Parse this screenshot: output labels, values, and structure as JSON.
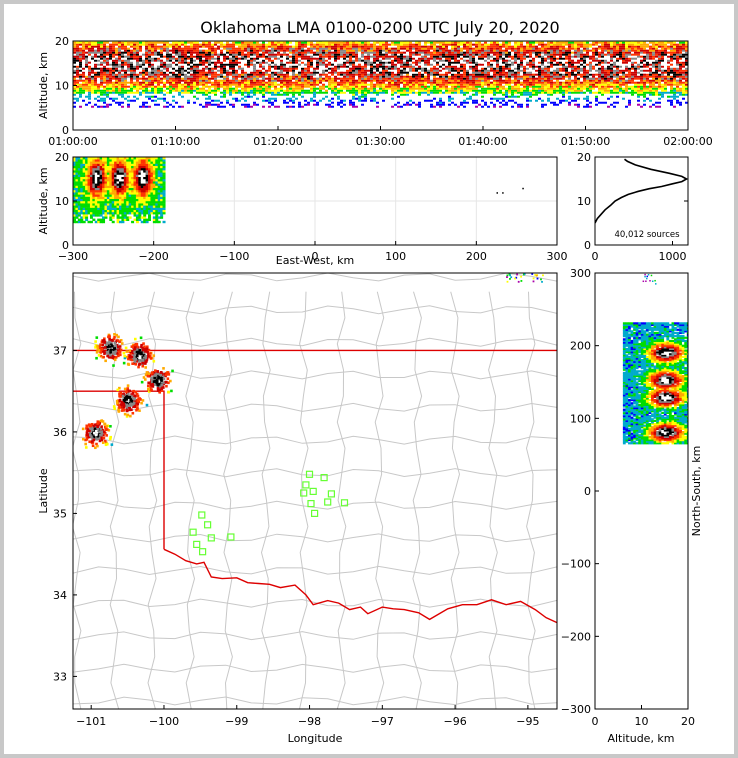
{
  "chart_data": [
    {
      "id": "time-height",
      "type": "heatmap",
      "title": "Oklahoma LMA 0100-0200 UTC July 20, 2020",
      "xlabel": "",
      "ylabel": "Altitude, km",
      "ylim": [
        0,
        20
      ],
      "yticks": [
        "0",
        "10",
        "20"
      ],
      "xticks": [
        "01:00:00",
        "01:10:00",
        "01:20:00",
        "01:30:00",
        "01:40:00",
        "01:50:00",
        "02:00:00"
      ],
      "xlim_minutes": [
        0,
        60
      ],
      "source_band_km": [
        5,
        20
      ],
      "core_band_km": [
        11,
        18
      ]
    },
    {
      "id": "ew-height",
      "type": "heatmap",
      "xlabel": "East-West, km",
      "ylabel": "Altitude, km",
      "xlim": [
        -300,
        300
      ],
      "ylim": [
        0,
        20
      ],
      "xticks": [
        "−300",
        "−200",
        "−100",
        "0",
        "100",
        "200",
        "300"
      ],
      "yticks": [
        "0",
        "10",
        "20"
      ],
      "clusters": [
        {
          "x_range": [
            -300,
            -188
          ],
          "z_range": [
            5,
            20
          ]
        }
      ],
      "core_centers_x": [
        -272,
        -244,
        -215
      ],
      "core_center_z": 15,
      "scattered_points": [
        [
          225,
          12
        ],
        [
          232,
          12
        ],
        [
          257,
          13
        ]
      ]
    },
    {
      "id": "altitude-histogram",
      "type": "line",
      "xlim": [
        0,
        1200
      ],
      "ylim": [
        0,
        20
      ],
      "xticks": [
        "0",
        "1000"
      ],
      "yticks": [
        "0",
        "10",
        "20"
      ],
      "annotation": "40,012 sources",
      "x": [
        0,
        30,
        80,
        130,
        200,
        260,
        340,
        430,
        560,
        700,
        860,
        1000,
        1120,
        1180,
        1120,
        960,
        720,
        520,
        420,
        380
      ],
      "y": [
        5,
        6,
        7,
        8,
        9,
        10,
        10.8,
        11.5,
        12.2,
        12.8,
        13.3,
        13.9,
        14.4,
        15,
        15.6,
        16.3,
        17.2,
        18.2,
        19,
        19.5
      ]
    },
    {
      "id": "plan-view",
      "type": "scatter",
      "xlabel": "Longitude",
      "ylabel": "Latitude",
      "xlim": [
        -101.25,
        -94.6
      ],
      "ylim": [
        32.6,
        37.95
      ],
      "xticks": [
        "−101",
        "−100",
        "−99",
        "−98",
        "−97",
        "−96",
        "−95"
      ],
      "yticks": [
        "33",
        "34",
        "35",
        "36",
        "37"
      ],
      "storm_cells": [
        {
          "lon": -100.75,
          "lat": 37.05
        },
        {
          "lon": -100.35,
          "lat": 36.95
        },
        {
          "lon": -100.1,
          "lat": 36.65
        },
        {
          "lon": -100.5,
          "lat": 36.4
        },
        {
          "lon": -100.95,
          "lat": 36.0
        }
      ],
      "stations": [
        {
          "lon": -99.55,
          "lat": 34.62
        },
        {
          "lon": -99.47,
          "lat": 34.53
        },
        {
          "lon": -99.35,
          "lat": 34.7
        },
        {
          "lon": -99.6,
          "lat": 34.77
        },
        {
          "lon": -99.4,
          "lat": 34.86
        },
        {
          "lon": -99.48,
          "lat": 34.98
        },
        {
          "lon": -99.08,
          "lat": 34.71
        },
        {
          "lon": -98.0,
          "lat": 35.48
        },
        {
          "lon": -98.05,
          "lat": 35.35
        },
        {
          "lon": -98.08,
          "lat": 35.25
        },
        {
          "lon": -97.95,
          "lat": 35.27
        },
        {
          "lon": -97.8,
          "lat": 35.44
        },
        {
          "lon": -97.7,
          "lat": 35.24
        },
        {
          "lon": -97.98,
          "lat": 35.12
        },
        {
          "lon": -97.93,
          "lat": 35.0
        },
        {
          "lon": -97.75,
          "lat": 35.14
        },
        {
          "lon": -97.52,
          "lat": 35.13
        }
      ],
      "border": [
        [
          -101.25,
          37.0
        ],
        [
          -94.6,
          37.0
        ]
      ],
      "border_panhandle": [
        [
          -101.25,
          36.5
        ],
        [
          -100.0,
          36.5
        ],
        [
          -100.0,
          34.56
        ]
      ],
      "red_river": [
        [
          -100.0,
          34.56
        ],
        [
          -99.85,
          34.5
        ],
        [
          -99.7,
          34.42
        ],
        [
          -99.55,
          34.38
        ],
        [
          -99.45,
          34.4
        ],
        [
          -99.35,
          34.22
        ],
        [
          -99.2,
          34.2
        ],
        [
          -99.0,
          34.21
        ],
        [
          -98.85,
          34.15
        ],
        [
          -98.7,
          34.14
        ],
        [
          -98.55,
          34.13
        ],
        [
          -98.4,
          34.09
        ],
        [
          -98.2,
          34.12
        ],
        [
          -98.05,
          34.0
        ],
        [
          -97.95,
          33.88
        ],
        [
          -97.75,
          33.93
        ],
        [
          -97.6,
          33.9
        ],
        [
          -97.45,
          33.82
        ],
        [
          -97.3,
          33.85
        ],
        [
          -97.2,
          33.77
        ],
        [
          -97.0,
          33.85
        ],
        [
          -96.85,
          33.83
        ],
        [
          -96.7,
          33.82
        ],
        [
          -96.5,
          33.78
        ],
        [
          -96.35,
          33.7
        ],
        [
          -96.1,
          33.83
        ],
        [
          -95.9,
          33.88
        ],
        [
          -95.7,
          33.88
        ],
        [
          -95.5,
          33.94
        ],
        [
          -95.3,
          33.88
        ],
        [
          -95.1,
          33.92
        ],
        [
          -94.9,
          33.82
        ],
        [
          -94.75,
          33.72
        ],
        [
          -94.6,
          33.66
        ]
      ]
    },
    {
      "id": "ns-height",
      "type": "heatmap",
      "xlabel": "Altitude, km",
      "ylabel": "North-South, km",
      "xlim": [
        0,
        20
      ],
      "ylim": [
        -300,
        300
      ],
      "xticks": [
        "0",
        "10",
        "20"
      ],
      "yticks": [
        "300",
        "200",
        "100",
        "0",
        "−100",
        "−200",
        "−300"
      ],
      "clusters": [
        {
          "ns_range": [
            65,
            230
          ],
          "alt_range": [
            6,
            20
          ]
        }
      ],
      "core_centers_ns": [
        190,
        152,
        128,
        80
      ],
      "core_center_alt": 15
    }
  ]
}
